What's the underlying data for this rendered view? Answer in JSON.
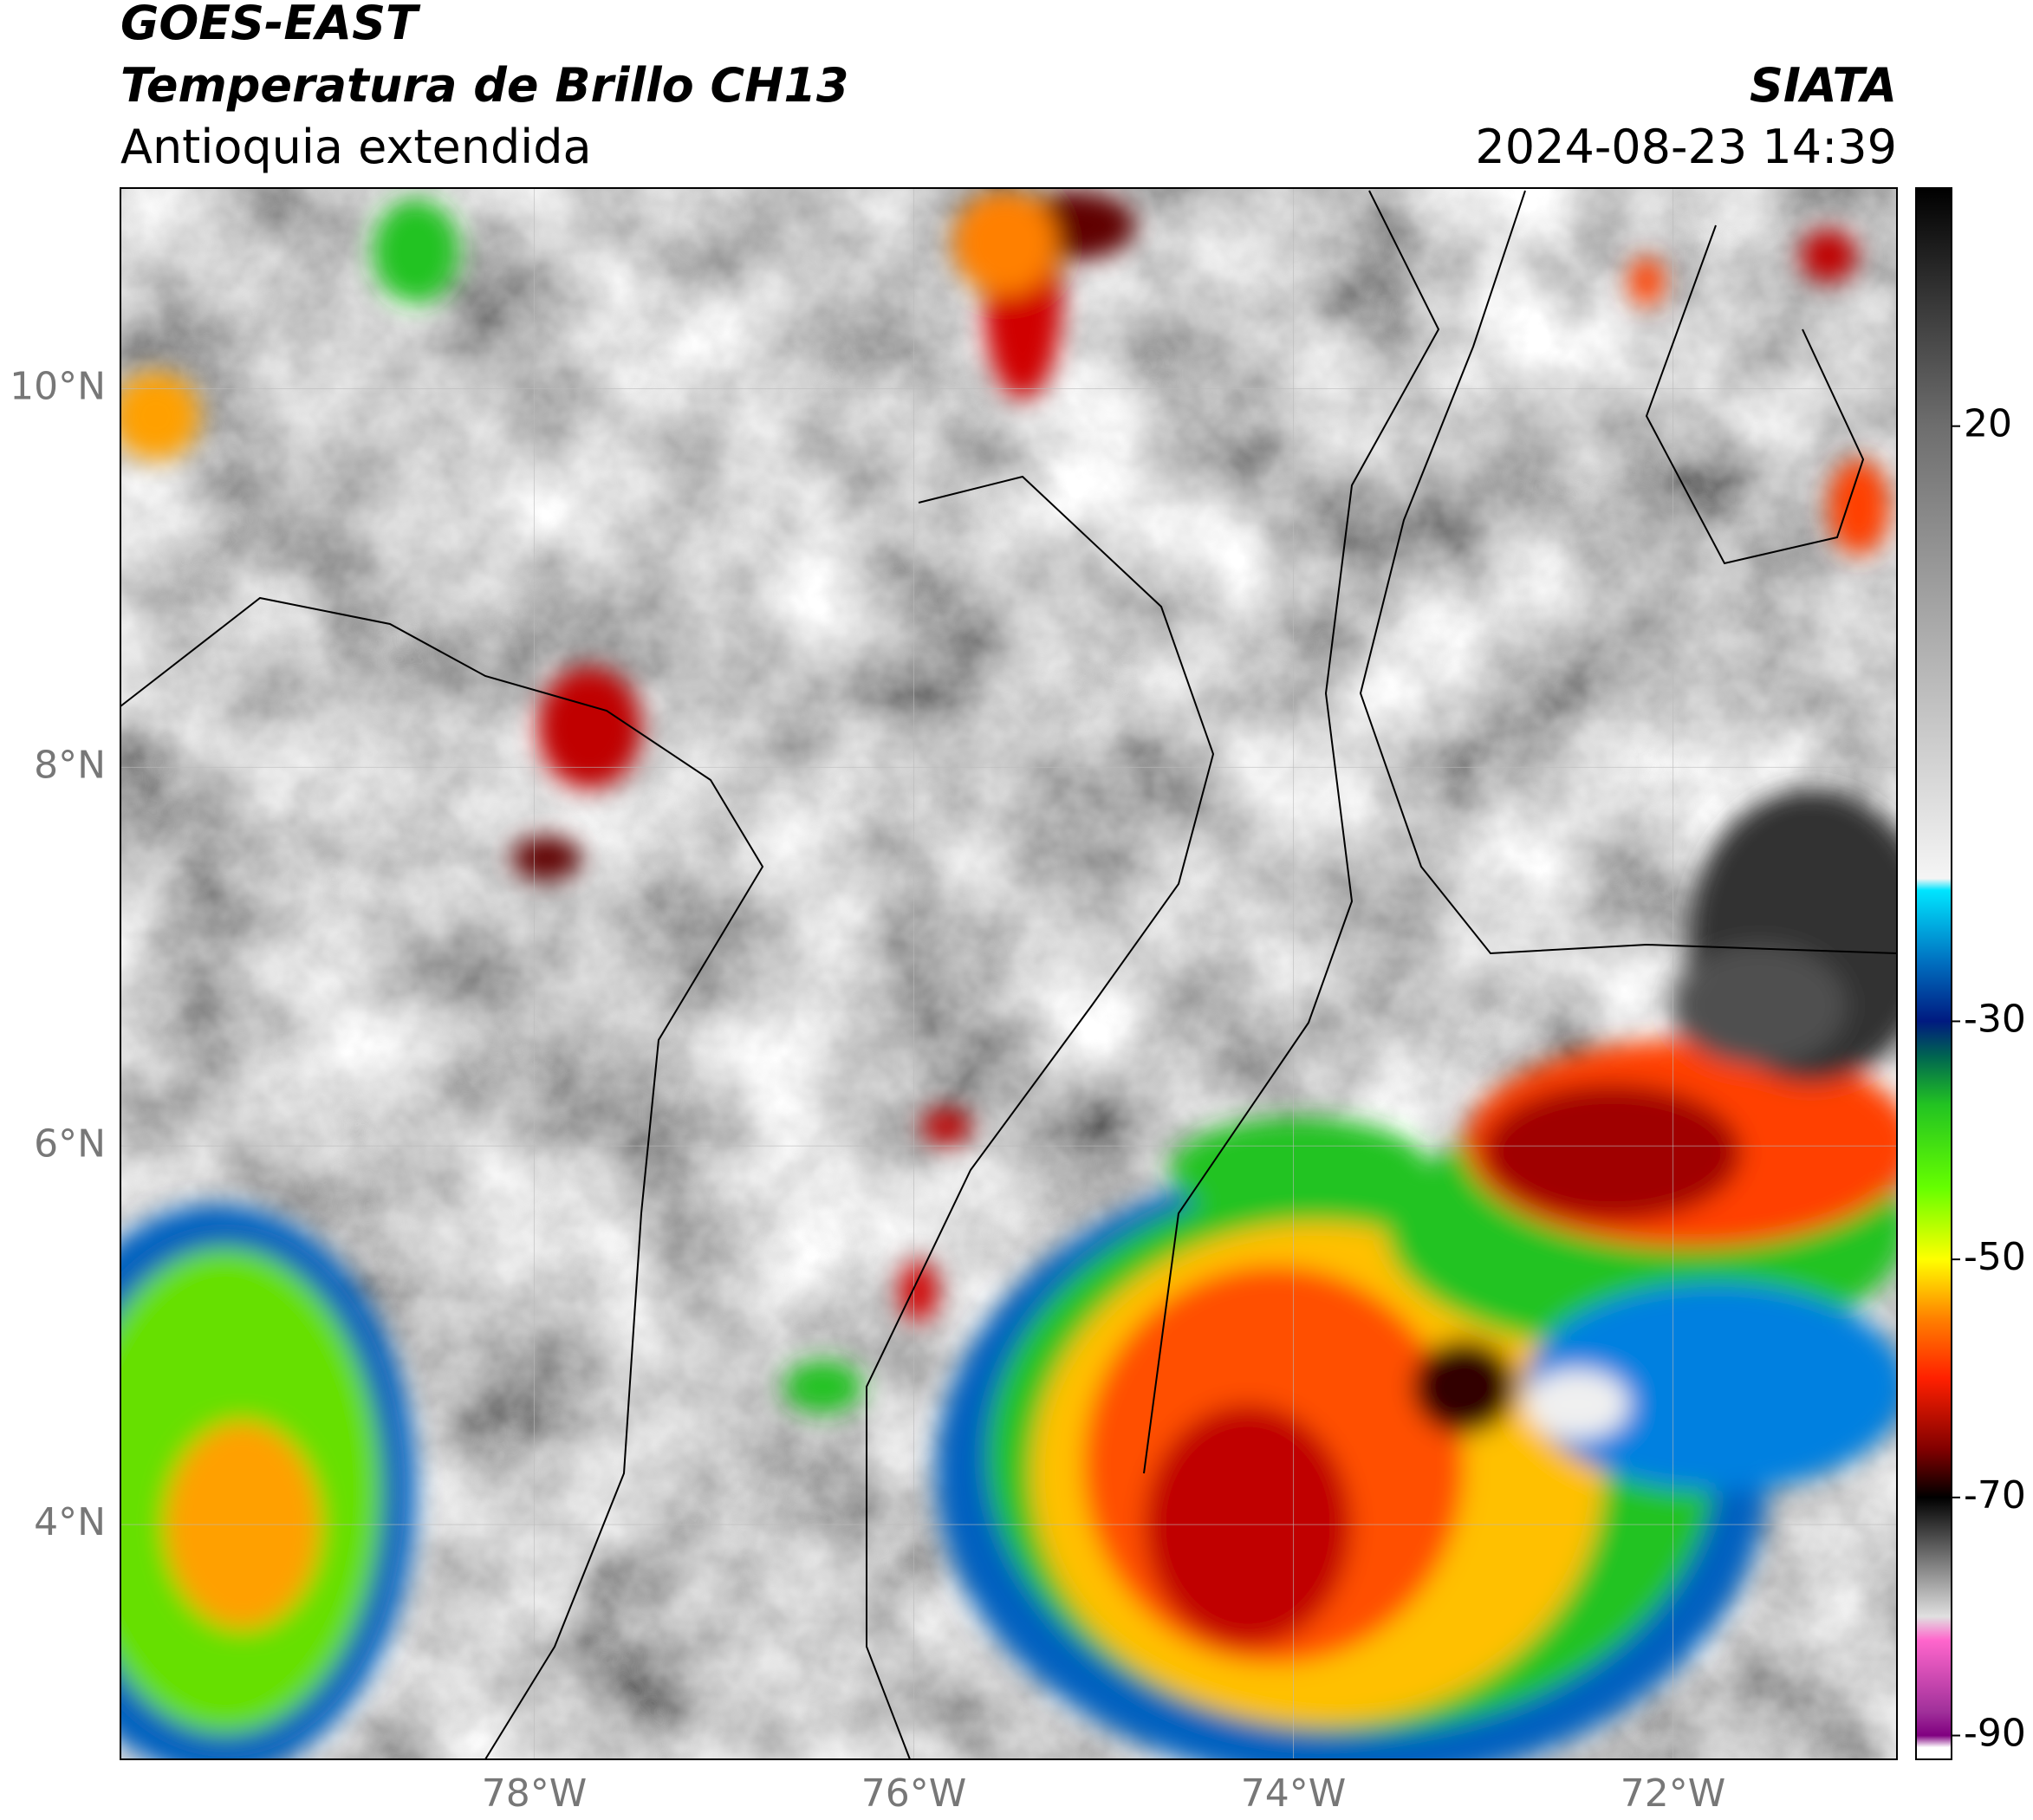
{
  "header": {
    "title": "GOES-EAST",
    "subtitle": "Temperatura de Brillo CH13",
    "region": "Antioquia extendida",
    "source": "SIATA",
    "datetime": "2024-08-23 14:39"
  },
  "map": {
    "lon_range": [
      -80.18,
      -70.82
    ],
    "lat_range": [
      2.76,
      11.06
    ],
    "lon_ticks": [
      {
        "value": -78,
        "label": "78°W"
      },
      {
        "value": -76,
        "label": "76°W"
      },
      {
        "value": -74,
        "label": "74°W"
      },
      {
        "value": -72,
        "label": "72°W"
      }
    ],
    "lat_ticks": [
      {
        "value": 10,
        "label": "10°N"
      },
      {
        "value": 8,
        "label": "8°N"
      },
      {
        "value": 6,
        "label": "6°N"
      },
      {
        "value": 4,
        "label": "4°N"
      }
    ],
    "grid": true
  },
  "colorbar": {
    "range": [
      -92,
      40
    ],
    "ticks": [
      20,
      -30,
      -50,
      -70,
      -90
    ],
    "stops": [
      [
        40,
        "#000000"
      ],
      [
        30,
        "#3a3a3a"
      ],
      [
        20,
        "#6e6e6e"
      ],
      [
        0,
        "#b5b5b5"
      ],
      [
        -18,
        "#f5f5f5"
      ],
      [
        -19,
        "#00e5ff"
      ],
      [
        -25,
        "#0070c0"
      ],
      [
        -30,
        "#001a80"
      ],
      [
        -33,
        "#006650"
      ],
      [
        -37,
        "#22c322"
      ],
      [
        -44,
        "#66ff00"
      ],
      [
        -50,
        "#ffff00"
      ],
      [
        -55,
        "#ff8000"
      ],
      [
        -60,
        "#ff2000"
      ],
      [
        -66,
        "#800000"
      ],
      [
        -70,
        "#000000"
      ],
      [
        -76,
        "#888888"
      ],
      [
        -80,
        "#e0e0e0"
      ],
      [
        -82,
        "#ff66cc"
      ],
      [
        -88,
        "#a0309a"
      ],
      [
        -90,
        "#800080"
      ],
      [
        -91,
        "#ffffff"
      ],
      [
        -92,
        "#ffffff"
      ]
    ]
  }
}
